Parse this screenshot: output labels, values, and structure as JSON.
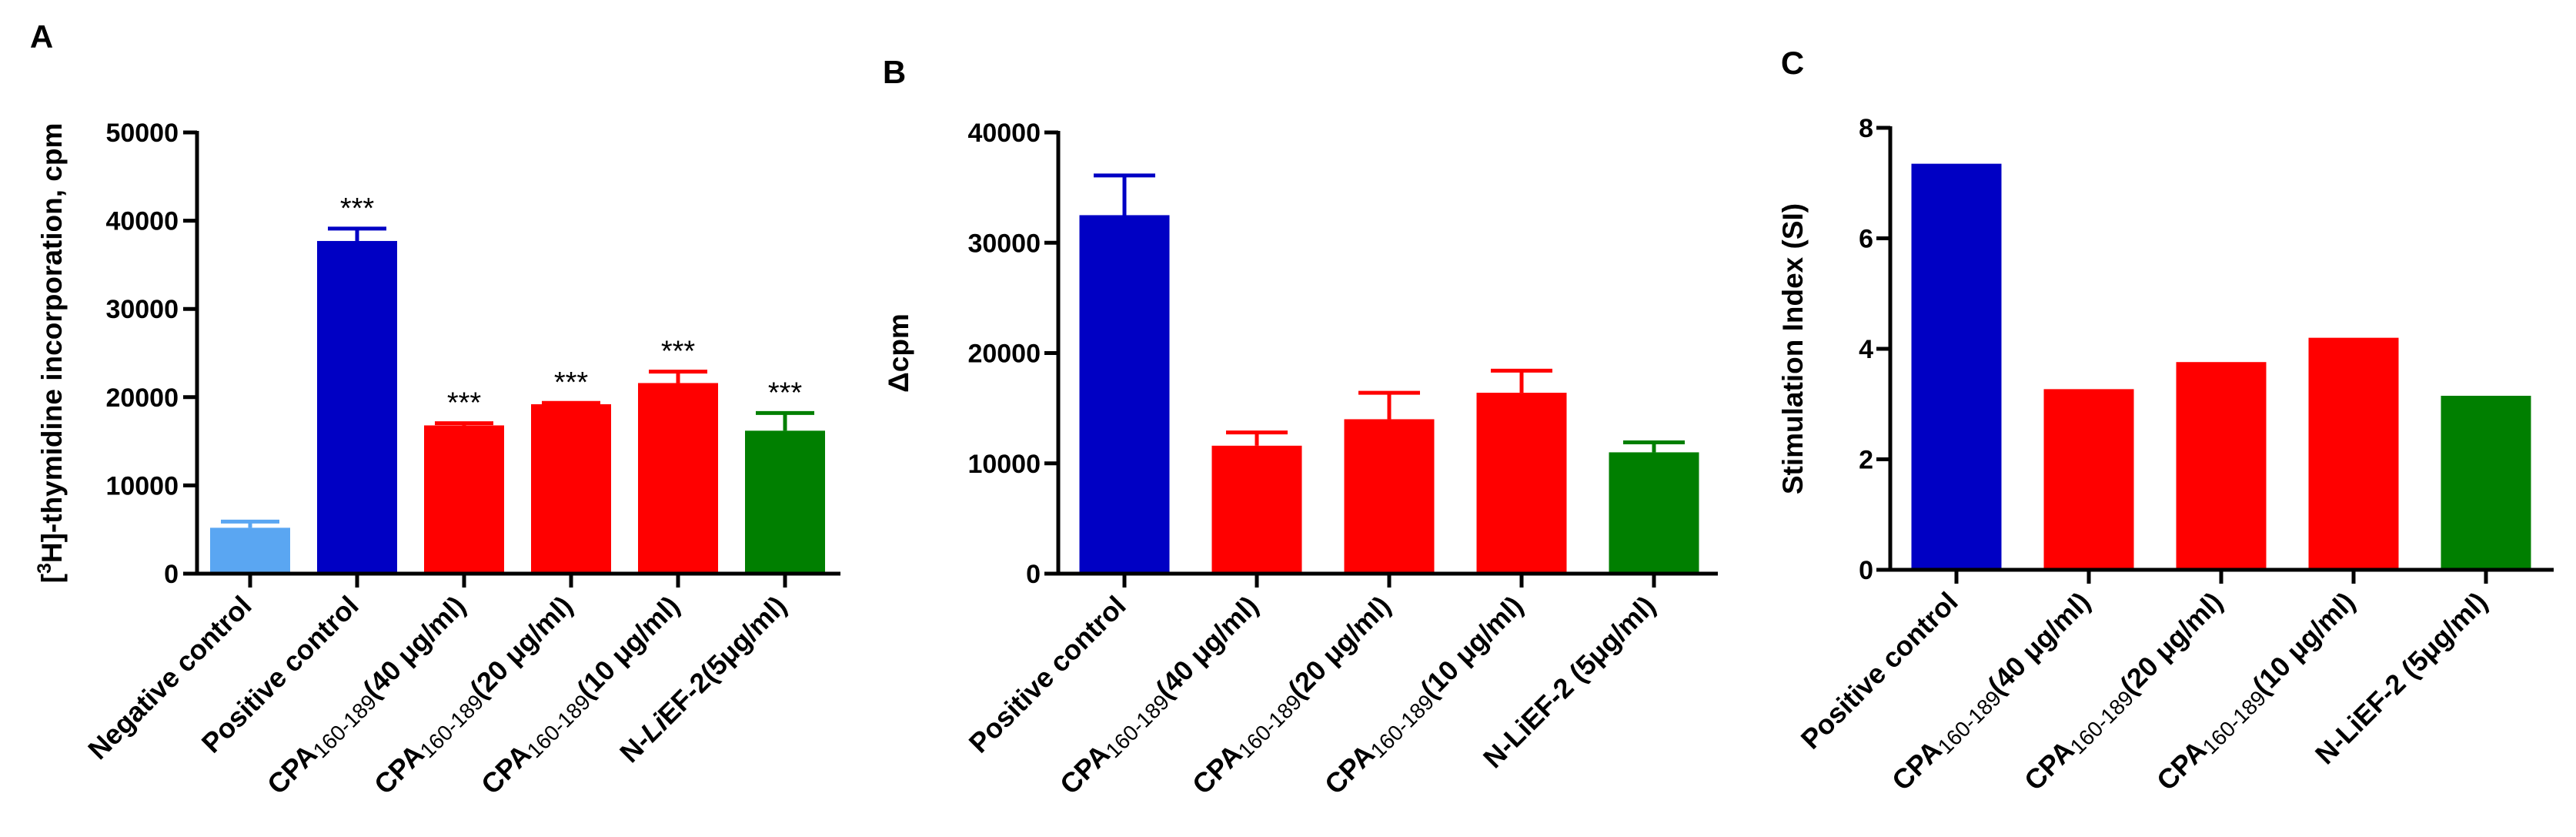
{
  "colors": {
    "negative": "#5aa6f2",
    "positive": "#0000c4",
    "cpa": "#ff0000",
    "lief": "#007f00",
    "axis": "#000000"
  },
  "chart_data": [
    {
      "panel": "A",
      "type": "bar",
      "ylabel_pre": "[",
      "ylabel_sup": "3",
      "ylabel_post": "H]-thymidine incorporation, cpm",
      "ylim": [
        0,
        50000
      ],
      "yticks": [
        "0",
        "10000",
        "20000",
        "30000",
        "40000",
        "50000"
      ],
      "categories": [
        {
          "main": "Negative control",
          "sub": "",
          "rest": "",
          "italic": false
        },
        {
          "main": "Positive control",
          "sub": "",
          "rest": "",
          "italic": false
        },
        {
          "main": "CPA",
          "sub": "160-189",
          "rest": "(40 μg/ml)",
          "italic": false
        },
        {
          "main": "CPA",
          "sub": "160-189",
          "rest": "(20 μg/ml)",
          "italic": false
        },
        {
          "main": "CPA",
          "sub": "160-189",
          "rest": "(10 μg/ml)",
          "italic": false
        },
        {
          "main": "N-",
          "italic_part": "Li",
          "rest": "EF-2(5μg/ml)",
          "sub": "",
          "italic": true
        }
      ],
      "values": [
        5200,
        37700,
        16800,
        19200,
        21600,
        16200
      ],
      "errors": [
        700,
        1400,
        250,
        150,
        1300,
        2000
      ],
      "bar_colors": [
        "negative",
        "positive",
        "cpa",
        "cpa",
        "cpa",
        "lief"
      ],
      "significance": [
        "",
        "***",
        "***",
        "***",
        "***",
        "***"
      ]
    },
    {
      "panel": "B",
      "type": "bar",
      "ylabel": "Δcpm",
      "ylim": [
        0,
        40000
      ],
      "yticks": [
        "0",
        "10000",
        "20000",
        "30000",
        "40000"
      ],
      "categories": [
        {
          "main": "Positive control",
          "sub": "",
          "rest": "",
          "italic": false
        },
        {
          "main": "CPA",
          "sub": "160-189",
          "rest": "(40 μg/ml)",
          "italic": false
        },
        {
          "main": "CPA",
          "sub": "160-189",
          "rest": "(20 μg/ml)",
          "italic": false
        },
        {
          "main": "CPA",
          "sub": "160-189",
          "rest": "(10 μg/ml)",
          "italic": false
        },
        {
          "main": "N-LiEF-2  (5μg/ml)",
          "sub": "",
          "rest": "",
          "italic": false
        }
      ],
      "values": [
        32500,
        11600,
        14000,
        16400,
        11000
      ],
      "errors": [
        3600,
        1200,
        2400,
        2000,
        900
      ],
      "bar_colors": [
        "positive",
        "cpa",
        "cpa",
        "cpa",
        "lief"
      ],
      "significance": []
    },
    {
      "panel": "C",
      "type": "bar",
      "ylabel": "Stimulation Index (SI)",
      "ylim": [
        0,
        8
      ],
      "yticks": [
        "0",
        "2",
        "4",
        "6",
        "8"
      ],
      "categories": [
        {
          "main": "Positive control",
          "sub": "",
          "rest": "",
          "italic": false
        },
        {
          "main": "CPA",
          "sub": "160-189",
          "rest": "(40 μg/ml)",
          "italic": false
        },
        {
          "main": "CPA",
          "sub": "160-189",
          "rest": "(20 μg/ml)",
          "italic": false
        },
        {
          "main": "CPA",
          "sub": "160-189",
          "rest": "(10 μg/ml)",
          "italic": false
        },
        {
          "main": "N-LiEF-2  (5μg/ml)",
          "sub": "",
          "rest": "",
          "italic": false
        }
      ],
      "values": [
        7.35,
        3.27,
        3.76,
        4.2,
        3.15
      ],
      "errors": [
        0,
        0,
        0,
        0,
        0
      ],
      "bar_colors": [
        "positive",
        "cpa",
        "cpa",
        "cpa",
        "lief"
      ],
      "significance": []
    }
  ]
}
